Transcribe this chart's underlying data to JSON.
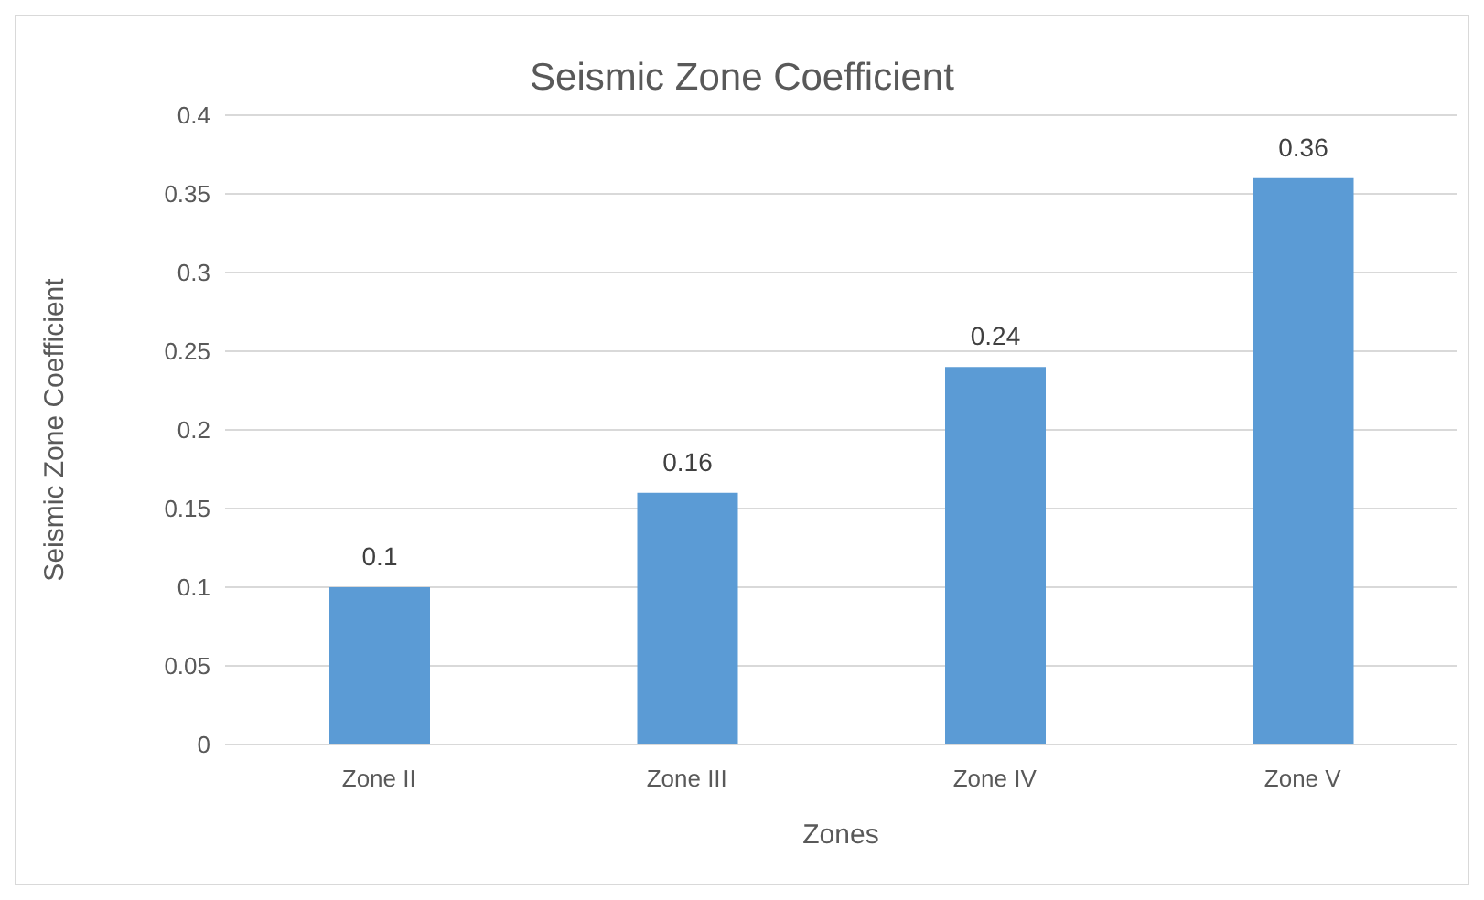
{
  "chart_data": {
    "type": "bar",
    "title": "Seismic Zone Coefficient",
    "xlabel": "Zones",
    "ylabel": "Seismic Zone Coefficient",
    "categories": [
      "Zone II",
      "Zone III",
      "Zone IV",
      "Zone V"
    ],
    "values": [
      0.1,
      0.16,
      0.24,
      0.36
    ],
    "color": "#5b9bd5",
    "ylim": [
      0,
      0.4
    ],
    "yticks": [
      0,
      0.05,
      0.1,
      0.15,
      0.2,
      0.25,
      0.3,
      0.35,
      0.4
    ],
    "grid": "y",
    "data_labels": true
  }
}
